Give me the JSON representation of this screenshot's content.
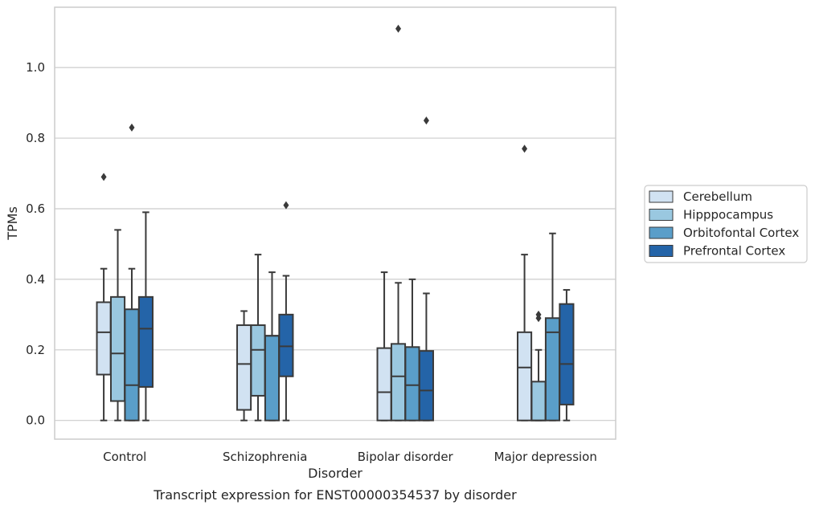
{
  "chart_data": {
    "type": "box",
    "title": "",
    "caption": "Transcript expression for ENST00000354537 by disorder",
    "xlabel": "Disorder",
    "ylabel": "TPMs",
    "ylim": [
      -0.053,
      1.171
    ],
    "yticks": [
      0.0,
      0.2,
      0.4,
      0.6,
      0.8,
      1.0
    ],
    "ytick_labels": [
      "0.0",
      "0.2",
      "0.4",
      "0.6",
      "0.8",
      "1.0"
    ],
    "grid": true,
    "legend_position": "right",
    "categories": [
      "Control",
      "Schizophrenia",
      "Bipolar disorder",
      "Major depression"
    ],
    "series": [
      {
        "name": "Cerebellum",
        "color": "#d1e2f2",
        "boxes": [
          {
            "q1": 0.13,
            "median": 0.25,
            "q3": 0.335,
            "whisker_low": 0.0,
            "whisker_high": 0.43,
            "outliers": [
              0.69
            ]
          },
          {
            "q1": 0.03,
            "median": 0.16,
            "q3": 0.27,
            "whisker_low": 0.0,
            "whisker_high": 0.31,
            "outliers": []
          },
          {
            "q1": 0.0,
            "median": 0.08,
            "q3": 0.205,
            "whisker_low": 0.0,
            "whisker_high": 0.42,
            "outliers": []
          },
          {
            "q1": 0.0,
            "median": 0.15,
            "q3": 0.25,
            "whisker_low": 0.0,
            "whisker_high": 0.47,
            "outliers": [
              0.77
            ]
          }
        ]
      },
      {
        "name": "Hipppocampus",
        "color": "#9ac8e0",
        "boxes": [
          {
            "q1": 0.055,
            "median": 0.19,
            "q3": 0.35,
            "whisker_low": 0.0,
            "whisker_high": 0.54,
            "outliers": []
          },
          {
            "q1": 0.07,
            "median": 0.2,
            "q3": 0.27,
            "whisker_low": 0.0,
            "whisker_high": 0.47,
            "outliers": []
          },
          {
            "q1": 0.0,
            "median": 0.125,
            "q3": 0.217,
            "whisker_low": 0.0,
            "whisker_high": 0.39,
            "outliers": [
              1.11
            ]
          },
          {
            "q1": 0.0,
            "median": 0.0,
            "q3": 0.11,
            "whisker_low": 0.0,
            "whisker_high": 0.2,
            "outliers": [
              0.29,
              0.3
            ]
          }
        ]
      },
      {
        "name": "Orbitofontal Cortex",
        "color": "#5a9ec9",
        "boxes": [
          {
            "q1": 0.0,
            "median": 0.1,
            "q3": 0.315,
            "whisker_low": 0.0,
            "whisker_high": 0.43,
            "outliers": [
              0.83
            ]
          },
          {
            "q1": 0.0,
            "median": 0.24,
            "q3": 0.24,
            "whisker_low": 0.0,
            "whisker_high": 0.42,
            "outliers": []
          },
          {
            "q1": 0.0,
            "median": 0.1,
            "q3": 0.208,
            "whisker_low": 0.0,
            "whisker_high": 0.4,
            "outliers": []
          },
          {
            "q1": 0.0,
            "median": 0.25,
            "q3": 0.29,
            "whisker_low": 0.0,
            "whisker_high": 0.53,
            "outliers": []
          }
        ]
      },
      {
        "name": "Prefrontal Cortex",
        "color": "#2464a8",
        "boxes": [
          {
            "q1": 0.095,
            "median": 0.26,
            "q3": 0.35,
            "whisker_low": 0.0,
            "whisker_high": 0.59,
            "outliers": []
          },
          {
            "q1": 0.125,
            "median": 0.21,
            "q3": 0.3,
            "whisker_low": 0.0,
            "whisker_high": 0.41,
            "outliers": [
              0.61
            ]
          },
          {
            "q1": 0.0,
            "median": 0.085,
            "q3": 0.197,
            "whisker_low": 0.0,
            "whisker_high": 0.36,
            "outliers": [
              0.85
            ]
          },
          {
            "q1": 0.045,
            "median": 0.16,
            "q3": 0.33,
            "whisker_low": 0.0,
            "whisker_high": 0.37,
            "outliers": []
          }
        ]
      }
    ]
  }
}
